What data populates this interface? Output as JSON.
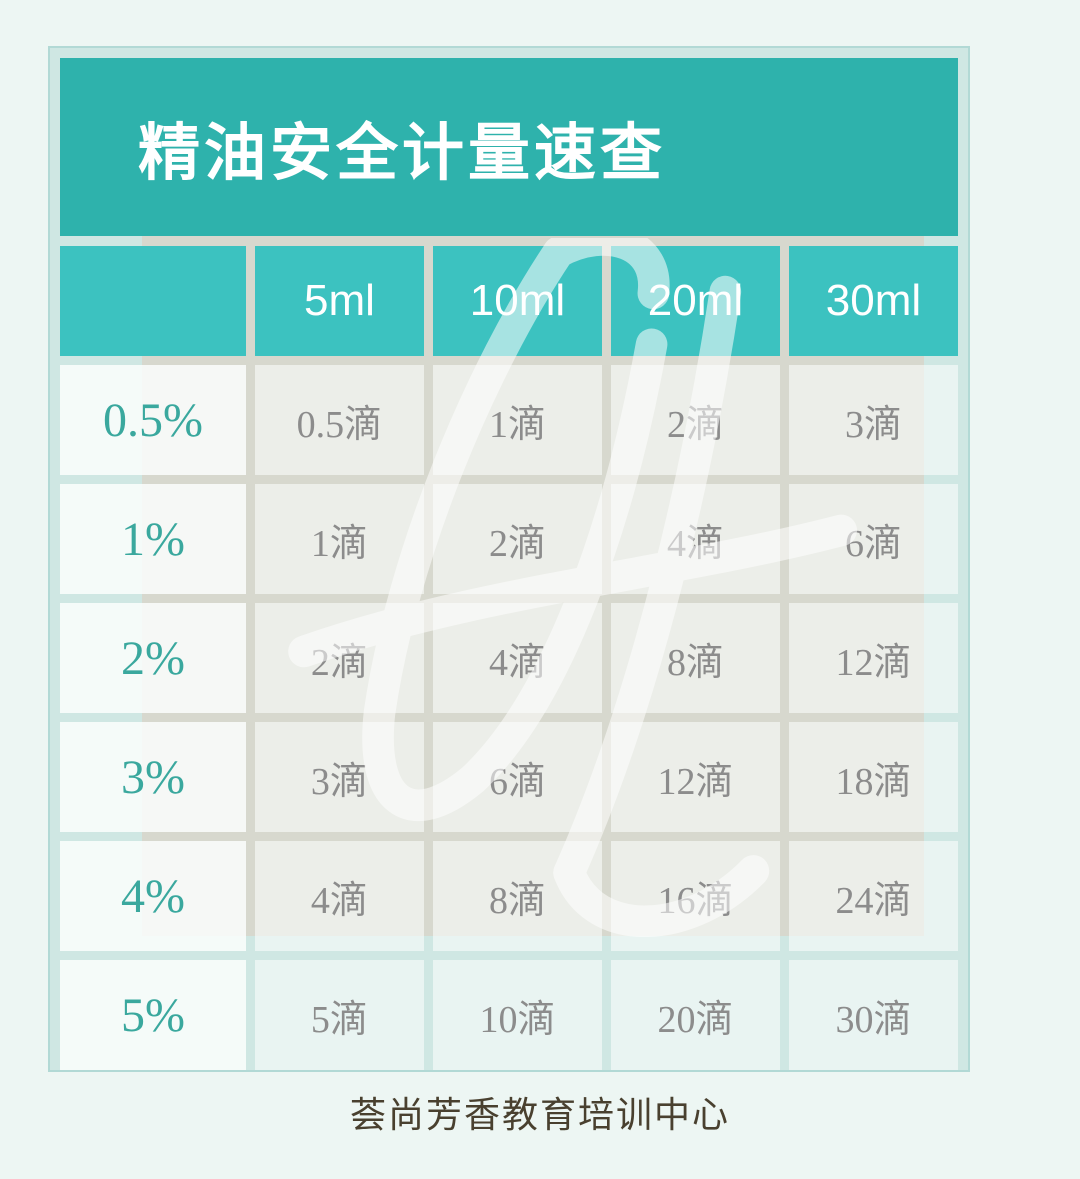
{
  "chart_data": {
    "type": "table",
    "title": "精油安全计量速查",
    "columns": [
      "",
      "5ml",
      "10ml",
      "20ml",
      "30ml"
    ],
    "rows": [
      {
        "label": "0.5%",
        "values": [
          "0.5滴",
          "1滴",
          "2滴",
          "3滴"
        ]
      },
      {
        "label": "1%",
        "values": [
          "1滴",
          "2滴",
          "4滴",
          "6滴"
        ]
      },
      {
        "label": "2%",
        "values": [
          "2滴",
          "4滴",
          "8滴",
          "12滴"
        ]
      },
      {
        "label": "3%",
        "values": [
          "3滴",
          "6滴",
          "12滴",
          "18滴"
        ]
      },
      {
        "label": "4%",
        "values": [
          "4滴",
          "8滴",
          "16滴",
          "24滴"
        ]
      },
      {
        "label": "5%",
        "values": [
          "5滴",
          "10滴",
          "20滴",
          "30滴"
        ]
      }
    ],
    "footer": "荟尚芳香教育培训中心",
    "grid": true,
    "legend_position": "none"
  },
  "colors": {
    "page_background": "#edf6f3",
    "title_band": "#2eb2ac",
    "header_cell": "#3cc2c0",
    "label_text": "#3aa89e",
    "value_text": "#8c8c8c",
    "watermark_beige": "#d9d3c6",
    "footer_text": "#49402f",
    "grid_gap": "#cfe7e3"
  },
  "watermark": {
    "description": "white script monogram over beige rectangle"
  }
}
